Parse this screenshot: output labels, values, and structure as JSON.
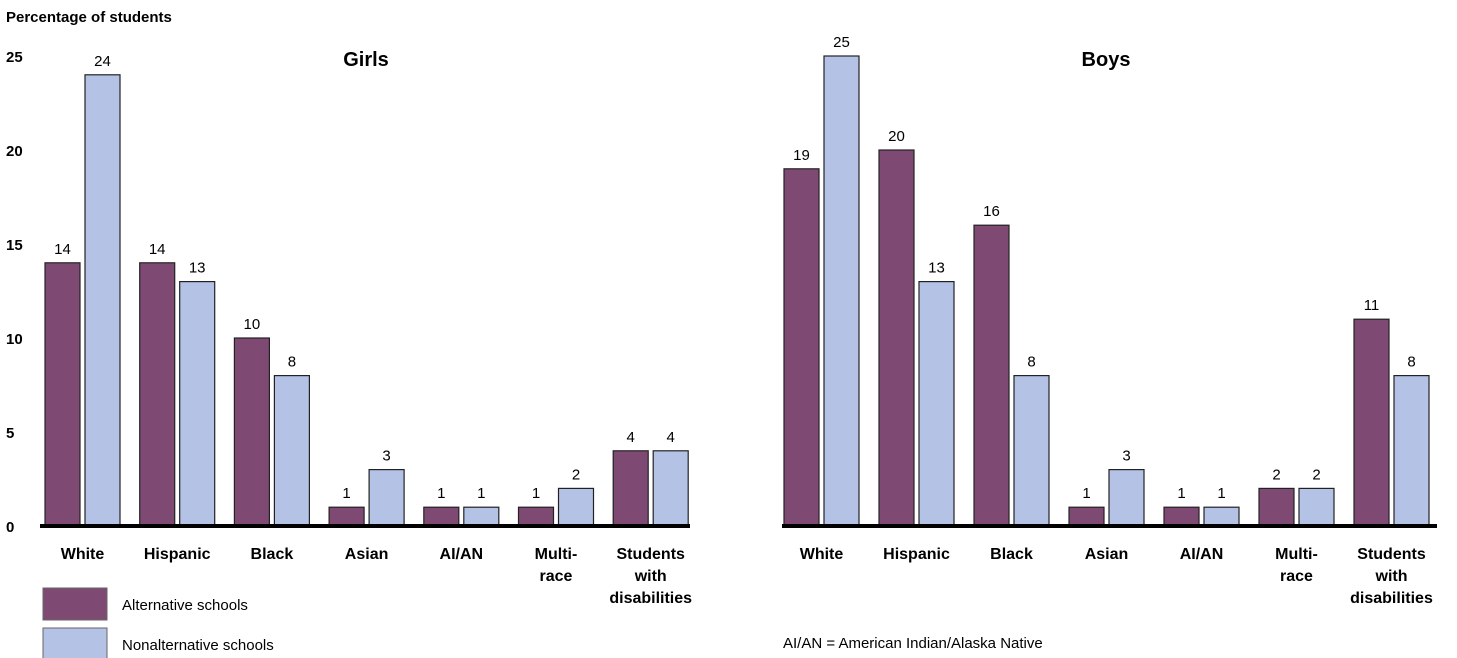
{
  "colors": {
    "alternative": "#7e4a73",
    "nonalternative": "#b4c2e6",
    "outline": "#222222",
    "axis": "#000000"
  },
  "legend": [
    {
      "label": "Alternative schools",
      "color": "#7e4a73"
    },
    {
      "label": "Nonalternative schools",
      "color": "#b4c2e6"
    }
  ],
  "note": "AI/AN = American Indian/Alaska Native",
  "chart_data": [
    {
      "type": "bar",
      "title": "Girls",
      "ylabel": "Percentage of students",
      "ylim": [
        0,
        25
      ],
      "yticks": [
        "0",
        "5",
        "10",
        "15",
        "20",
        "25"
      ],
      "categories": [
        [
          "White"
        ],
        [
          "Hispanic"
        ],
        [
          "Black"
        ],
        [
          "Asian"
        ],
        [
          "AI/AN"
        ],
        [
          "Multi-",
          "race"
        ],
        [
          "Students",
          "with",
          "disabilities"
        ]
      ],
      "series": [
        {
          "name": "Alternative schools",
          "values": [
            14,
            14,
            10,
            1,
            1,
            1,
            4
          ]
        },
        {
          "name": "Nonalternative schools",
          "values": [
            24,
            13,
            8,
            3,
            1,
            2,
            4
          ]
        }
      ]
    },
    {
      "type": "bar",
      "title": "Boys",
      "ylim": [
        0,
        25
      ],
      "categories": [
        [
          "White"
        ],
        [
          "Hispanic"
        ],
        [
          "Black"
        ],
        [
          "Asian"
        ],
        [
          "AI/AN"
        ],
        [
          "Multi-",
          "race"
        ],
        [
          "Students",
          "with",
          "disabilities"
        ]
      ],
      "series": [
        {
          "name": "Alternative schools",
          "values": [
            19,
            20,
            16,
            1,
            1,
            2,
            11
          ]
        },
        {
          "name": "Nonalternative schools",
          "values": [
            25,
            13,
            8,
            3,
            1,
            2,
            8
          ]
        }
      ]
    }
  ]
}
